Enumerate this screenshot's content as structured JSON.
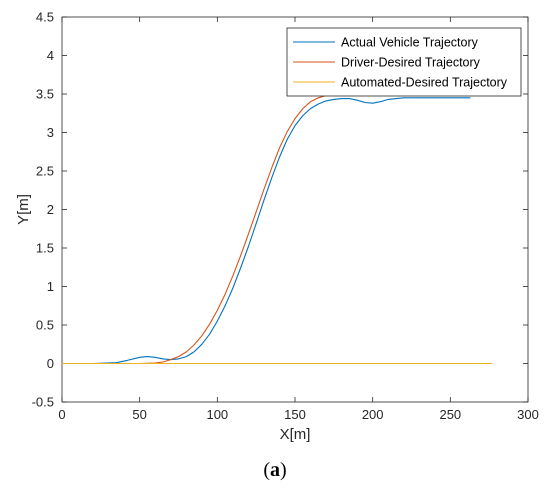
{
  "chart_data": {
    "type": "line",
    "xlabel": "X[m]",
    "ylabel": "Y[m]",
    "xlim": [
      0,
      300
    ],
    "ylim": [
      -0.5,
      4.5
    ],
    "xticks": [
      "0",
      "50",
      "100",
      "150",
      "200",
      "250",
      "300"
    ],
    "yticks": [
      "-0.5",
      "0",
      "0.5",
      "1",
      "1.5",
      "2",
      "2.5",
      "3",
      "3.5",
      "4",
      "4.5"
    ],
    "grid": false,
    "legend_position": "top-right",
    "series": [
      {
        "name": "Actual Vehicle Trajectory",
        "color": "#0072BD",
        "x": [
          0,
          20,
          35,
          42,
          50,
          55,
          60,
          65,
          70,
          75,
          80,
          85,
          90,
          95,
          100,
          105,
          110,
          115,
          120,
          125,
          130,
          135,
          140,
          145,
          150,
          155,
          160,
          165,
          170,
          175,
          180,
          185,
          190,
          195,
          200,
          205,
          210,
          220,
          230,
          240,
          250,
          263
        ],
        "y": [
          0,
          0,
          0.01,
          0.04,
          0.08,
          0.09,
          0.08,
          0.06,
          0.05,
          0.06,
          0.09,
          0.15,
          0.25,
          0.38,
          0.55,
          0.75,
          0.98,
          1.24,
          1.52,
          1.82,
          2.12,
          2.41,
          2.68,
          2.91,
          3.09,
          3.22,
          3.31,
          3.37,
          3.41,
          3.43,
          3.44,
          3.44,
          3.42,
          3.39,
          3.38,
          3.4,
          3.43,
          3.45,
          3.45,
          3.45,
          3.45,
          3.45
        ]
      },
      {
        "name": "Driver-Desired Trajectory",
        "color": "#D95319",
        "x": [
          0,
          50,
          60,
          65,
          70,
          75,
          80,
          85,
          90,
          95,
          100,
          105,
          110,
          115,
          120,
          125,
          130,
          135,
          140,
          145,
          150,
          155,
          160,
          165,
          170,
          175,
          180,
          185,
          190,
          200,
          220,
          240,
          267
        ],
        "y": [
          0,
          0,
          0.005,
          0.02,
          0.05,
          0.09,
          0.15,
          0.24,
          0.36,
          0.51,
          0.69,
          0.9,
          1.14,
          1.4,
          1.68,
          1.97,
          2.26,
          2.54,
          2.8,
          3.01,
          3.18,
          3.31,
          3.4,
          3.45,
          3.48,
          3.495,
          3.5,
          3.5,
          3.5,
          3.5,
          3.5,
          3.5,
          3.5
        ]
      },
      {
        "name": "Automated-Desired Trajectory",
        "color": "#EDB120",
        "x": [
          0,
          277
        ],
        "y": [
          0,
          0
        ]
      }
    ]
  },
  "caption": {
    "open": "(",
    "letter": "a",
    "close": ")"
  }
}
